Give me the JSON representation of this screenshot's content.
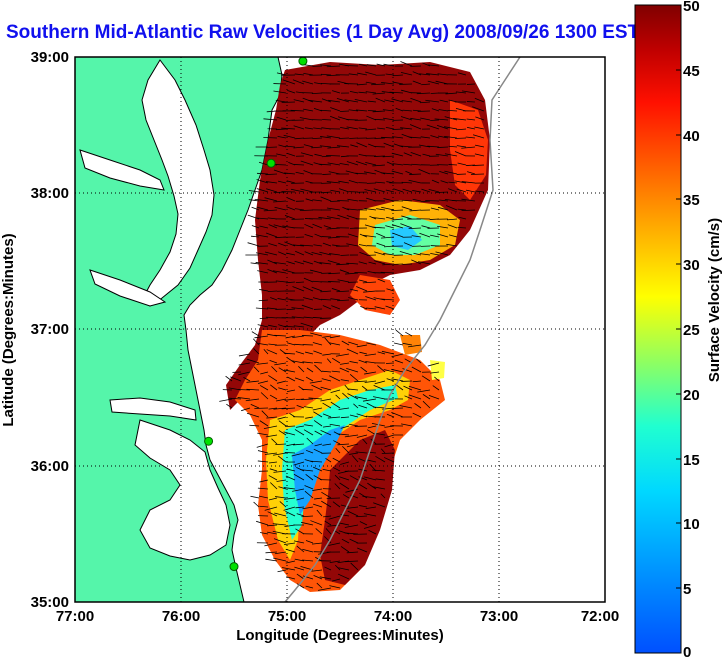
{
  "title": "Southern Mid-Atlantic Raw Velocities (1 Day Avg) 2008/09/26 1300 EST",
  "map": {
    "xlabel": "Longitude (Degrees:Minutes)",
    "ylabel": "Latitude (Degrees:Minutes)",
    "x_ticks": [
      "77:00",
      "76:00",
      "75:00",
      "74:00",
      "73:00",
      "72:00"
    ],
    "y_ticks": [
      "39:00",
      "38:00",
      "37:00",
      "36:00",
      "35:00"
    ],
    "lon_range": [
      -77,
      -72
    ],
    "lat_range": [
      35,
      39
    ],
    "land_color": "#55f5aa",
    "water_color": "#ffffff",
    "grid": true,
    "radar_sites": [
      {
        "lon": -74.85,
        "lat": 38.97
      },
      {
        "lon": -75.15,
        "lat": 38.22
      },
      {
        "lon": -75.74,
        "lat": 36.18
      },
      {
        "lon": -75.5,
        "lat": 35.26
      }
    ]
  },
  "colorbar": {
    "label": "Surface Velocity (cm/s)",
    "ticks": [
      "50",
      "45",
      "40",
      "35",
      "30",
      "25",
      "20",
      "15",
      "10",
      "5",
      "0"
    ],
    "range": [
      0,
      50
    ],
    "colormap": "jet"
  }
}
